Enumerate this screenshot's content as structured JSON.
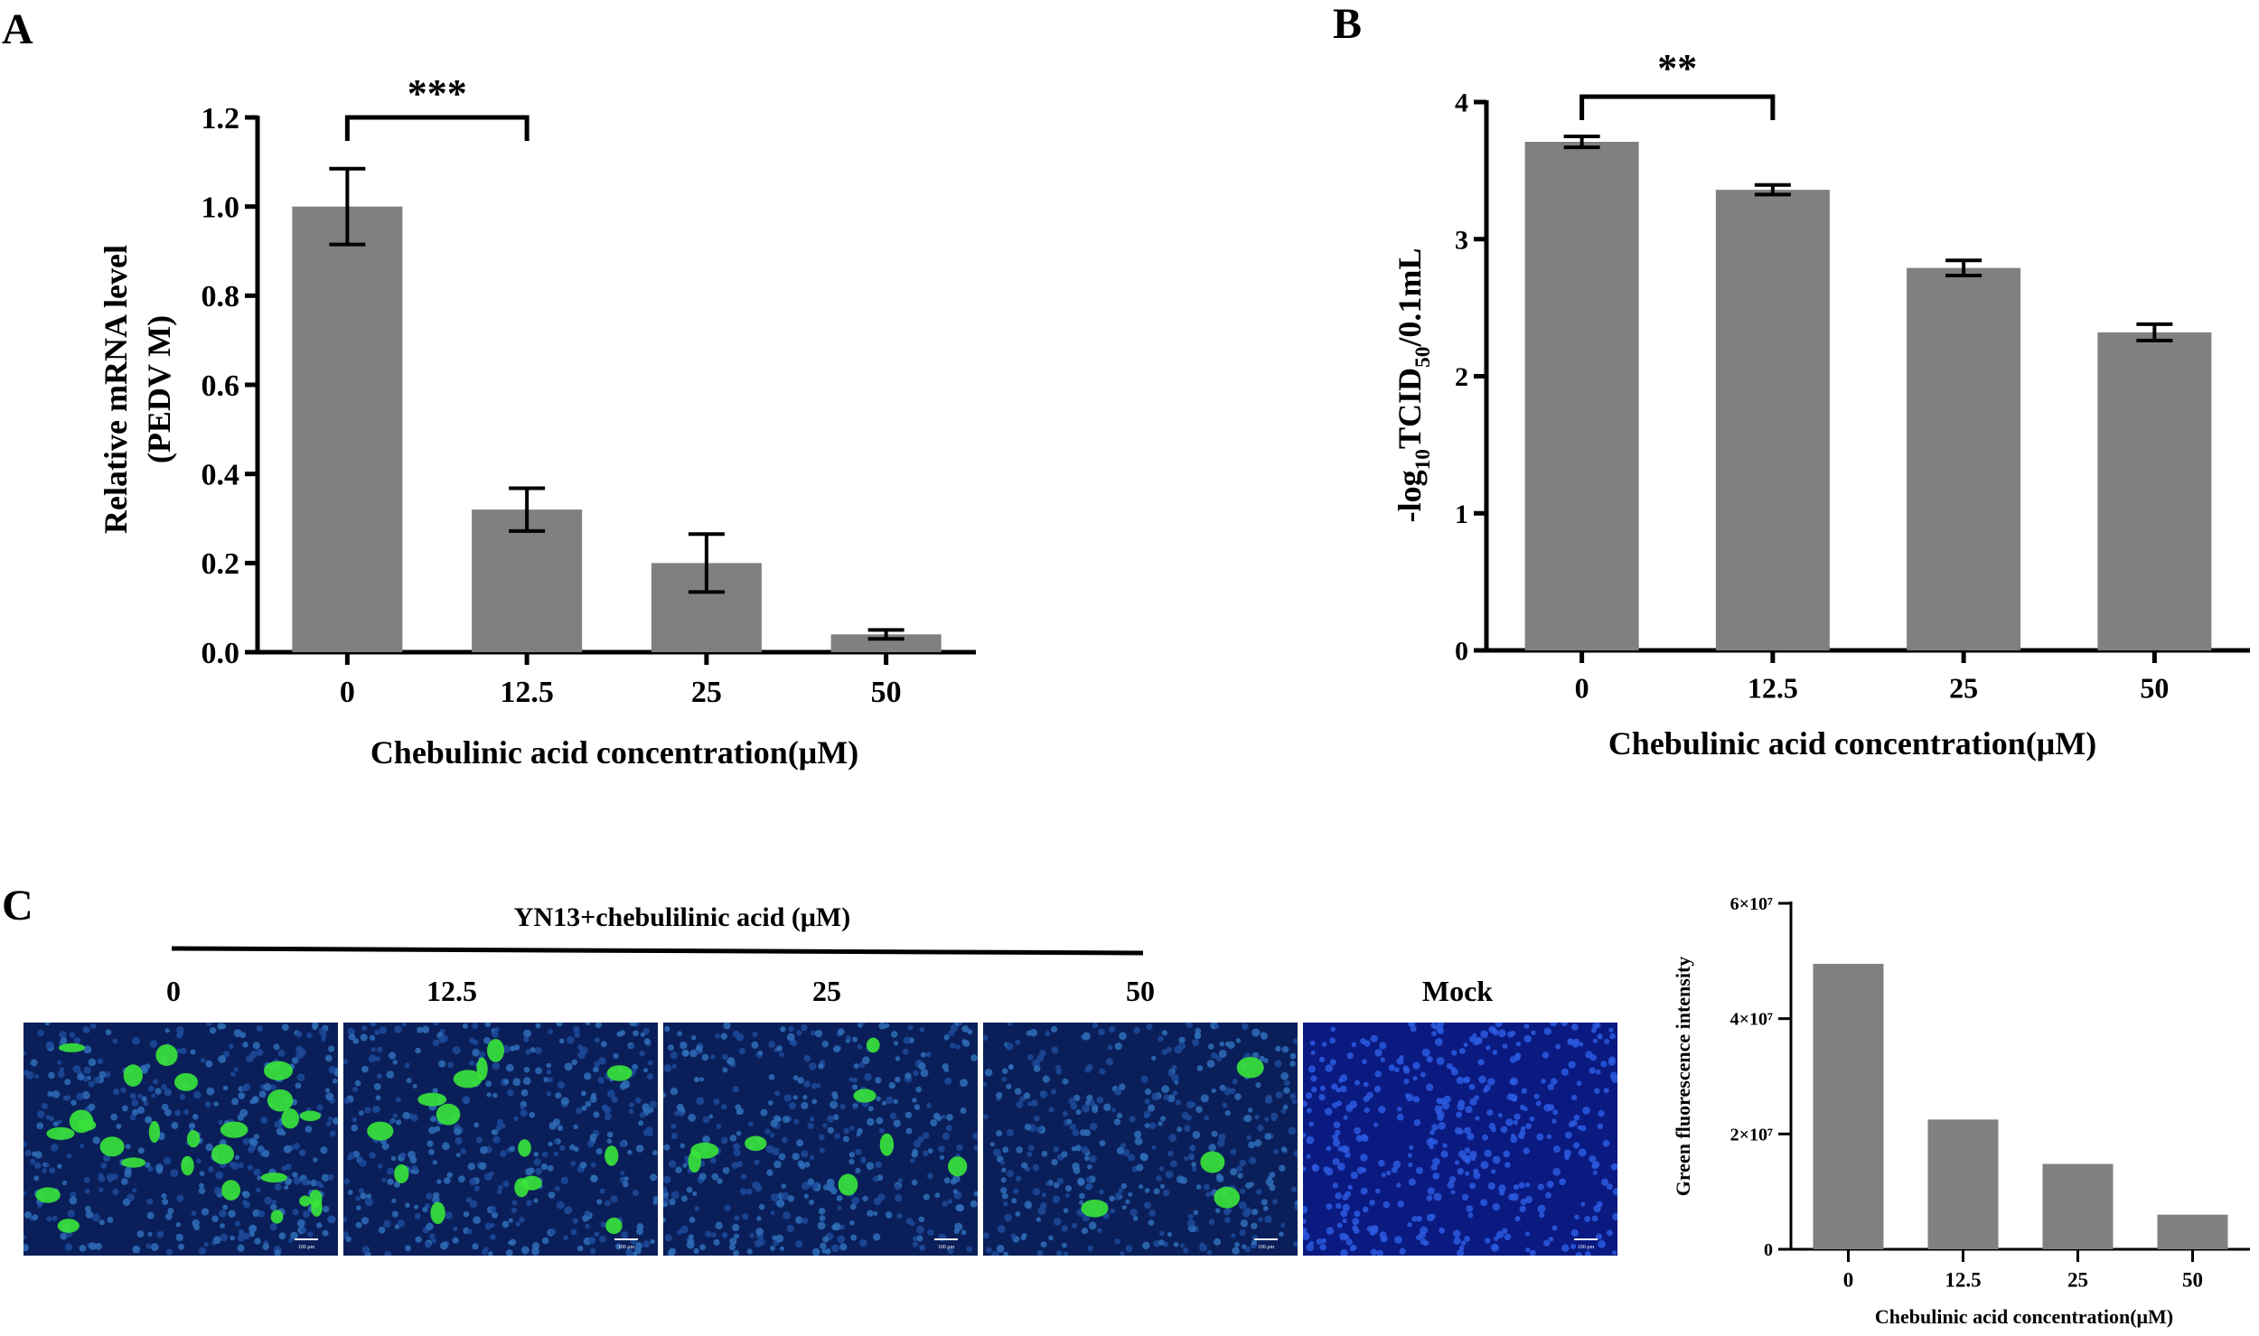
{
  "panels": {
    "A": {
      "letter": "A"
    },
    "B": {
      "letter": "B"
    },
    "C": {
      "letter": "C",
      "treatment_label": "YN13+chebulilinic acid (μM)",
      "image_labels": [
        "0",
        "12.5",
        "25",
        "50",
        "Mock"
      ],
      "scale_bar_label": "100 μm",
      "colors": {
        "nuclei": "#1e3fbf",
        "infected": "#39e639"
      }
    }
  },
  "chart_data": [
    {
      "id": "A",
      "type": "bar",
      "categories": [
        "0",
        "12.5",
        "25",
        "50"
      ],
      "values": [
        1.0,
        0.32,
        0.2,
        0.04
      ],
      "errors": [
        0.085,
        0.048,
        0.065,
        0.01
      ],
      "ylabel_line1": "Relative  mRNA level",
      "ylabel_line2": "(PEDV M)",
      "xlabel": "Chebulinic acid concentration(μM)",
      "ylim": [
        0,
        1.2
      ],
      "yticks": [
        "0.0",
        "0.2",
        "0.4",
        "0.6",
        "0.8",
        "1.0",
        "1.2"
      ],
      "significance": {
        "from": 0,
        "to": 1,
        "label": "***"
      },
      "bar_color": "#808080"
    },
    {
      "id": "B",
      "type": "bar",
      "categories": [
        "0",
        "12.5",
        "25",
        "50"
      ],
      "values": [
        3.71,
        3.36,
        2.79,
        2.32
      ],
      "errors": [
        0.04,
        0.035,
        0.055,
        0.06
      ],
      "ylabel": "-log10TCID50/0.1mL",
      "xlabel": "Chebulinic acid concentration(μM)",
      "ylim": [
        0,
        4
      ],
      "yticks": [
        "0",
        "1",
        "2",
        "3",
        "4"
      ],
      "significance": {
        "from": 0,
        "to": 1,
        "label": "**"
      },
      "bar_color": "#808080"
    },
    {
      "id": "C",
      "type": "bar",
      "categories": [
        "0",
        "12.5",
        "25",
        "50"
      ],
      "values": [
        49500000,
        22500000,
        14800000,
        6000000
      ],
      "ylabel": "Green fluorescence intensity",
      "xlabel": "Chebulinic acid concentration(μM)",
      "ylim": [
        0,
        60000000
      ],
      "yticks": [
        "0",
        "2×10⁷",
        "4×10⁷",
        "6×10⁷"
      ],
      "bar_color": "#808080"
    }
  ]
}
